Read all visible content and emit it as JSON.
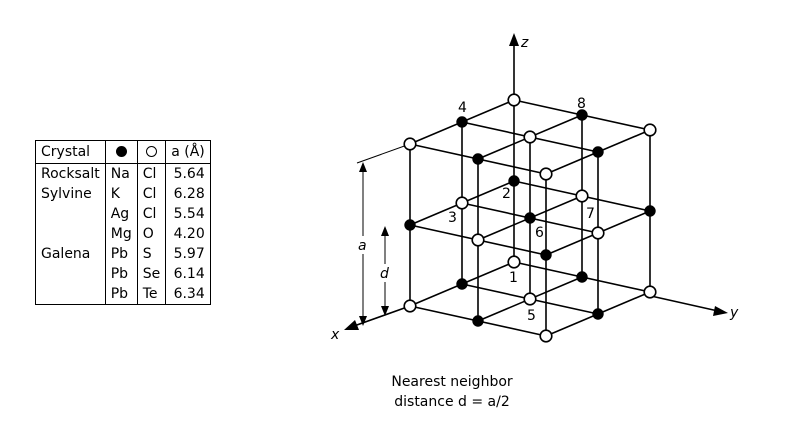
{
  "table": {
    "headers": {
      "crystal": "Crystal",
      "filled_symbol": "filled-circle",
      "open_symbol": "open-circle",
      "lattice": "a (Å)"
    },
    "rows": [
      {
        "crystal": "Rocksalt",
        "filled": "Na",
        "open": "Cl",
        "a": "5.64"
      },
      {
        "crystal": "Sylvine",
        "filled": "K",
        "open": "Cl",
        "a": "6.28"
      },
      {
        "crystal": "",
        "filled": "Ag",
        "open": "Cl",
        "a": "5.54"
      },
      {
        "crystal": "",
        "filled": "Mg",
        "open": "O",
        "a": "4.20"
      },
      {
        "crystal": "Galena",
        "filled": "Pb",
        "open": "S",
        "a": "5.97"
      },
      {
        "crystal": "",
        "filled": "Pb",
        "open": "Se",
        "a": "6.14"
      },
      {
        "crystal": "",
        "filled": "Pb",
        "open": "Te",
        "a": "6.34"
      }
    ]
  },
  "diagram": {
    "axes": {
      "x": "x",
      "y": "y",
      "z": "z"
    },
    "dimension_labels": {
      "a": "a",
      "d": "d"
    },
    "site_numbers": [
      "1",
      "2",
      "3",
      "4",
      "5",
      "6",
      "7",
      "8"
    ]
  },
  "caption": {
    "line1": "Nearest neighbor",
    "line2": "distance d = a/2"
  }
}
